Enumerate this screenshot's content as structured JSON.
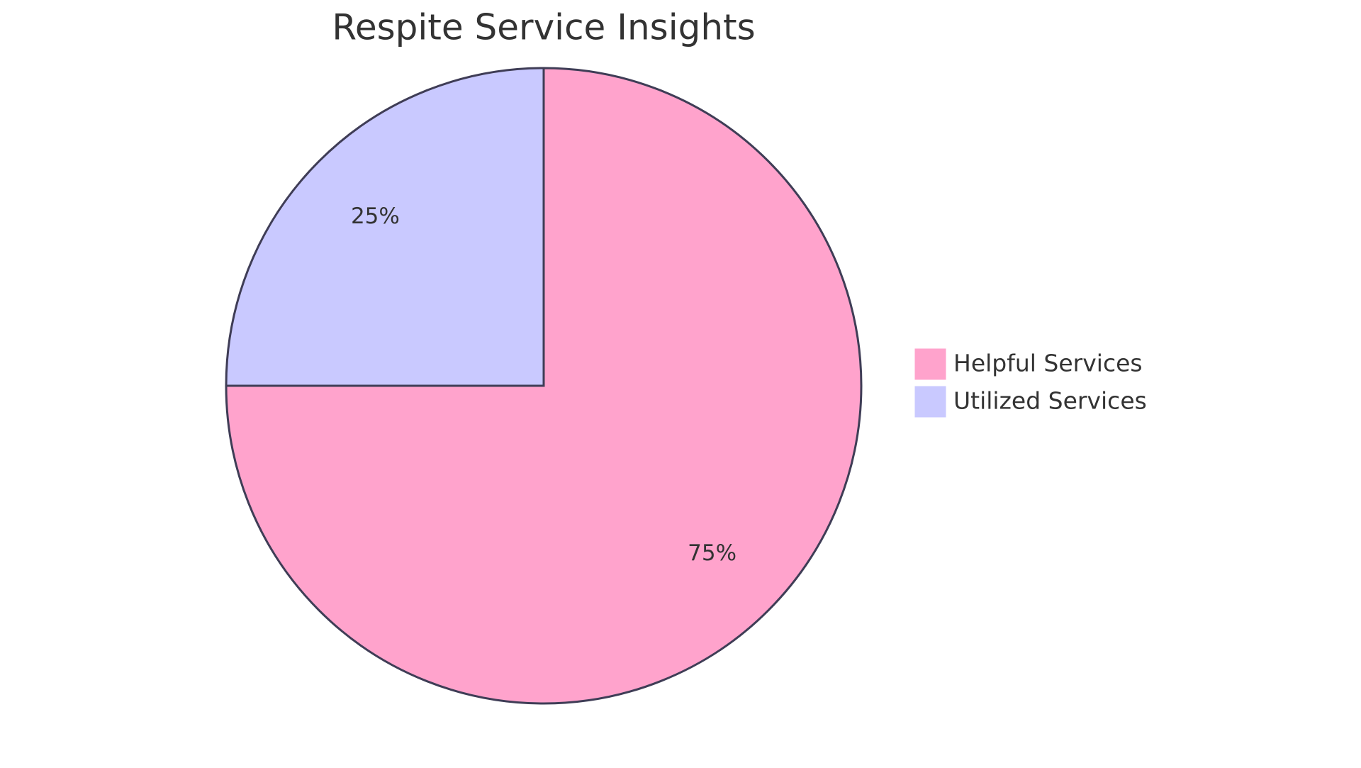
{
  "chart_data": {
    "type": "pie",
    "title": "Respite Service Insights",
    "categories": [
      "Helpful Services",
      "Utilized Services"
    ],
    "values": [
      75,
      25
    ],
    "value_labels": [
      "75%",
      "25%"
    ],
    "colors": [
      "#ffa3cc",
      "#c9c9ff"
    ],
    "legend": "right"
  }
}
